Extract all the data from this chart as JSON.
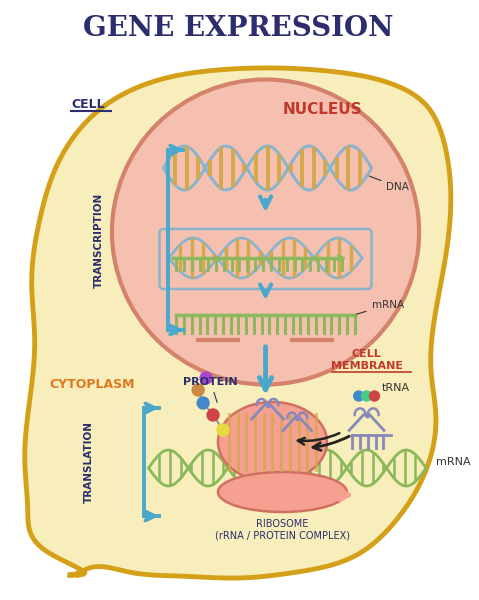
{
  "title": "GENE EXPRESSION",
  "title_color": "#2b2d6e",
  "title_fontsize": 20,
  "bg_color": "#ffffff",
  "cell_fill": "#f7eebc",
  "cell_border": "#d4a017",
  "nucleus_fill": "#f5c0b0",
  "nucleus_border": "#d4826a",
  "dna_strand_color": "#8ab4cc",
  "dna_rung_color": "#d4a84b",
  "mrna_color": "#8ab85a",
  "arrow_color": "#4aa8cc",
  "transcription_label": "TRANSCRIPTION",
  "translation_label": "TRANSLATION",
  "cell_label": "CELL",
  "nucleus_label": "NUCLEUS",
  "cytoplasm_label": "CYTOPLASM",
  "cell_membrane_label": "CELL\nMEMBRANE",
  "dna_label": "DNA",
  "mrna_label": "mRNA",
  "protein_label": "PROTEIN",
  "trna_label": "tRNA",
  "ribosome_label": "RIBOSOME\n(rRNA / PROTEIN COMPLEX)",
  "label_color_orange": "#e07820",
  "label_color_red": "#c0392b",
  "label_color_dark": "#2b2d6e",
  "label_color_black": "#333333",
  "ribosome_fill": "#f5a090",
  "ribosome_border": "#d07060"
}
